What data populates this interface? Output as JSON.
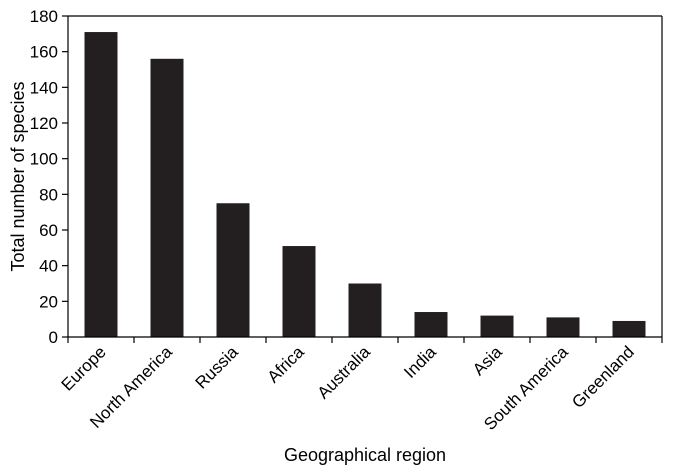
{
  "chart_data": {
    "type": "bar",
    "title": "",
    "xlabel": "Geographical region",
    "ylabel": "Total number of species",
    "categories": [
      "Europe",
      "North America",
      "Russia",
      "Africa",
      "Australia",
      "India",
      "Asia",
      "South America",
      "Greenland"
    ],
    "values": [
      171,
      156,
      75,
      51,
      30,
      14,
      12,
      11,
      9
    ],
    "ylim": [
      0,
      180
    ],
    "yticks": [
      0,
      20,
      40,
      60,
      80,
      100,
      120,
      140,
      160,
      180
    ],
    "grid": false,
    "legend": "none",
    "bar_color": "#231f20"
  }
}
